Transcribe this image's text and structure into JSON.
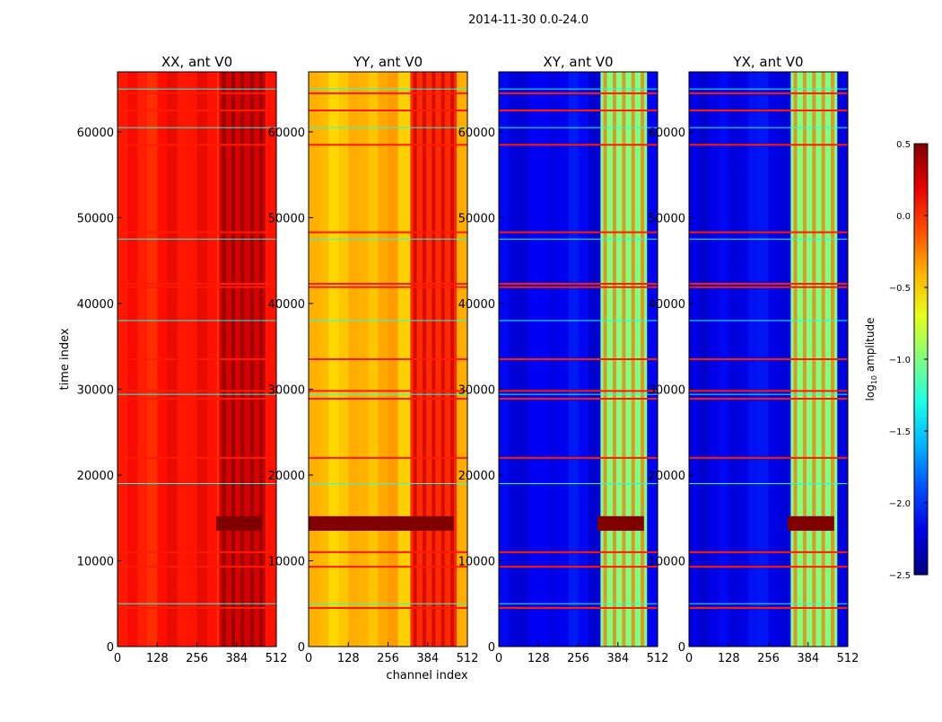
{
  "chart_data": {
    "type": "heatmap",
    "suptitle": "2014-11-30 0.0-24.0",
    "xlabel": "channel index",
    "ylabel": "time index",
    "xlim": [
      0,
      512
    ],
    "ylim": [
      0,
      67000
    ],
    "x_ticks": [
      0,
      128,
      256,
      384,
      512
    ],
    "y_ticks": [
      0,
      10000,
      20000,
      30000,
      40000,
      50000,
      60000
    ],
    "rfi_band_channels": [
      328,
      478
    ],
    "rfi_lines_time": [
      4500,
      5000,
      9300,
      11000,
      19000,
      22000,
      28900,
      29400,
      29800,
      33500,
      38000,
      41900,
      42300,
      47500,
      48300,
      58500,
      60500,
      62500,
      64500,
      65000
    ],
    "flagged_band_time": [
      13500,
      15200
    ],
    "colormap": "jet",
    "panels": [
      {
        "title": "XX, ant V0",
        "level": 0.05
      },
      {
        "title": "YY, ant V0",
        "level": -0.45
      },
      {
        "title": "XY, ant V0",
        "level": -2.2
      },
      {
        "title": "YX, ant V0",
        "level": -2.2
      }
    ],
    "colorbar": {
      "label_prefix": "log",
      "label_sub": "10",
      "label_suffix": " amplitude",
      "vmin": -2.5,
      "vmax": 0.5,
      "ticks": [
        {
          "value": 0.5,
          "label": "0.5"
        },
        {
          "value": 0.0,
          "label": "0.0"
        },
        {
          "value": -0.5,
          "label": "−0.5"
        },
        {
          "value": -1.0,
          "label": "−1.0"
        },
        {
          "value": -1.5,
          "label": "−1.5"
        },
        {
          "value": -2.0,
          "label": "−2.0"
        },
        {
          "value": -2.5,
          "label": "−2.5"
        }
      ]
    }
  }
}
